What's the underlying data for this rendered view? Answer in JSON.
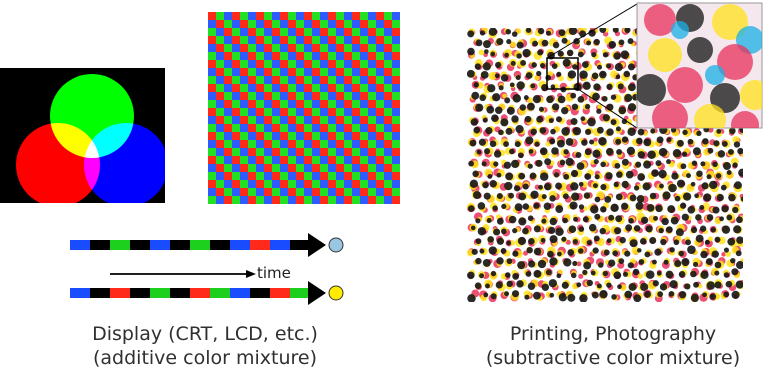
{
  "additive_venn": {
    "circles": [
      {
        "name": "green",
        "color": "#00ff00"
      },
      {
        "name": "red",
        "color": "#ff0000"
      },
      {
        "name": "blue",
        "color": "#0000ff"
      }
    ],
    "overlaps": {
      "yellow": "#ffff00",
      "cyan": "#00ffff",
      "magenta": "#ff00ff",
      "white": "#ffffff"
    }
  },
  "subpixel_grid": {
    "colors": [
      "#ff2a1a",
      "#22e022",
      "#2f5bff"
    ]
  },
  "temporal_strips": [
    {
      "segments": [
        "#1a4cff",
        "#000000",
        "#1ed01e",
        "#000000",
        "#1a4cff",
        "#000000",
        "#1ed01e",
        "#000000",
        "#1a4cff",
        "#ff2a1a",
        "#1a4cff",
        "#000000"
      ],
      "result_color": "#99c6e0"
    },
    {
      "segments": [
        "#1a4cff",
        "#000000",
        "#ff2a1a",
        "#000000",
        "#1ed01e",
        "#000000",
        "#ff2a1a",
        "#1ed01e",
        "#1a4cff",
        "#000000",
        "#ff2a1a",
        "#1ed01e"
      ],
      "result_color": "#ffec00"
    }
  ],
  "time_label": "time",
  "halftone": {
    "ink_colors": [
      "#e8305a",
      "#141414",
      "#ffe21a",
      "#1bb0e6"
    ]
  },
  "display_caption": {
    "line1": "Display (CRT, LCD, etc.)",
    "line2": "(additive color mixture)"
  },
  "printing_caption": {
    "line1": "Printing, Photography",
    "line2": "(subtractive color mixture)"
  }
}
